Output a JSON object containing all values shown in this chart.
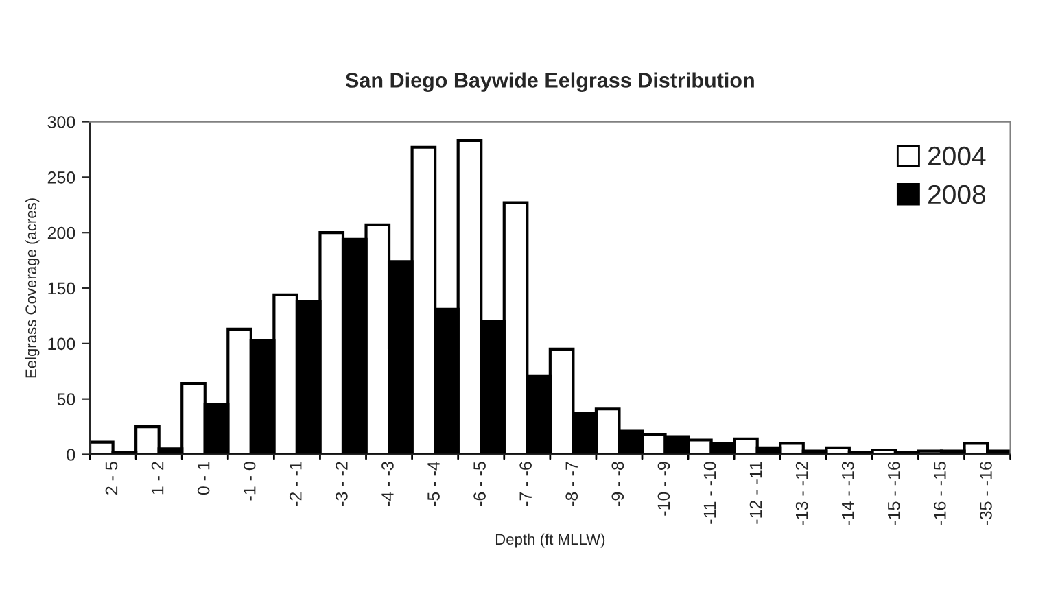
{
  "chart_data": {
    "type": "bar",
    "title": "San Diego Baywide Eelgrass Distribution",
    "xlabel": "Depth (ft MLLW)",
    "ylabel": "Eelgrass Coverage (acres)",
    "categories": [
      "2 - 5",
      "1 - 2",
      "0 - 1",
      "-1 - 0",
      "-2 - -1",
      "-3 - -2",
      "-4 - -3",
      "-5 - -4",
      "-6 - -5",
      "-7 - -6",
      "-8 - -7",
      "-9 - -8",
      "-10 - -9",
      "-11 - -10",
      "-12 - -11",
      "-13 - -12",
      "-14 - -13",
      "-15 - -16",
      "-16 - -15",
      "-35 - -16"
    ],
    "series": [
      {
        "name": "2004",
        "color": "#ffffff",
        "values": [
          11,
          25,
          64,
          113,
          144,
          200,
          207,
          277,
          283,
          227,
          95,
          41,
          18,
          13,
          14,
          10,
          6,
          4,
          3,
          10
        ]
      },
      {
        "name": "2008",
        "color": "#000000",
        "values": [
          2,
          5,
          45,
          103,
          138,
          194,
          174,
          131,
          120,
          71,
          37,
          21,
          16,
          10,
          6,
          3,
          2,
          2,
          3,
          3
        ]
      }
    ],
    "ylim": [
      0,
      300
    ],
    "yticks": [
      0,
      50,
      100,
      150,
      200,
      250,
      300
    ],
    "legend": "top right",
    "grid": false
  }
}
